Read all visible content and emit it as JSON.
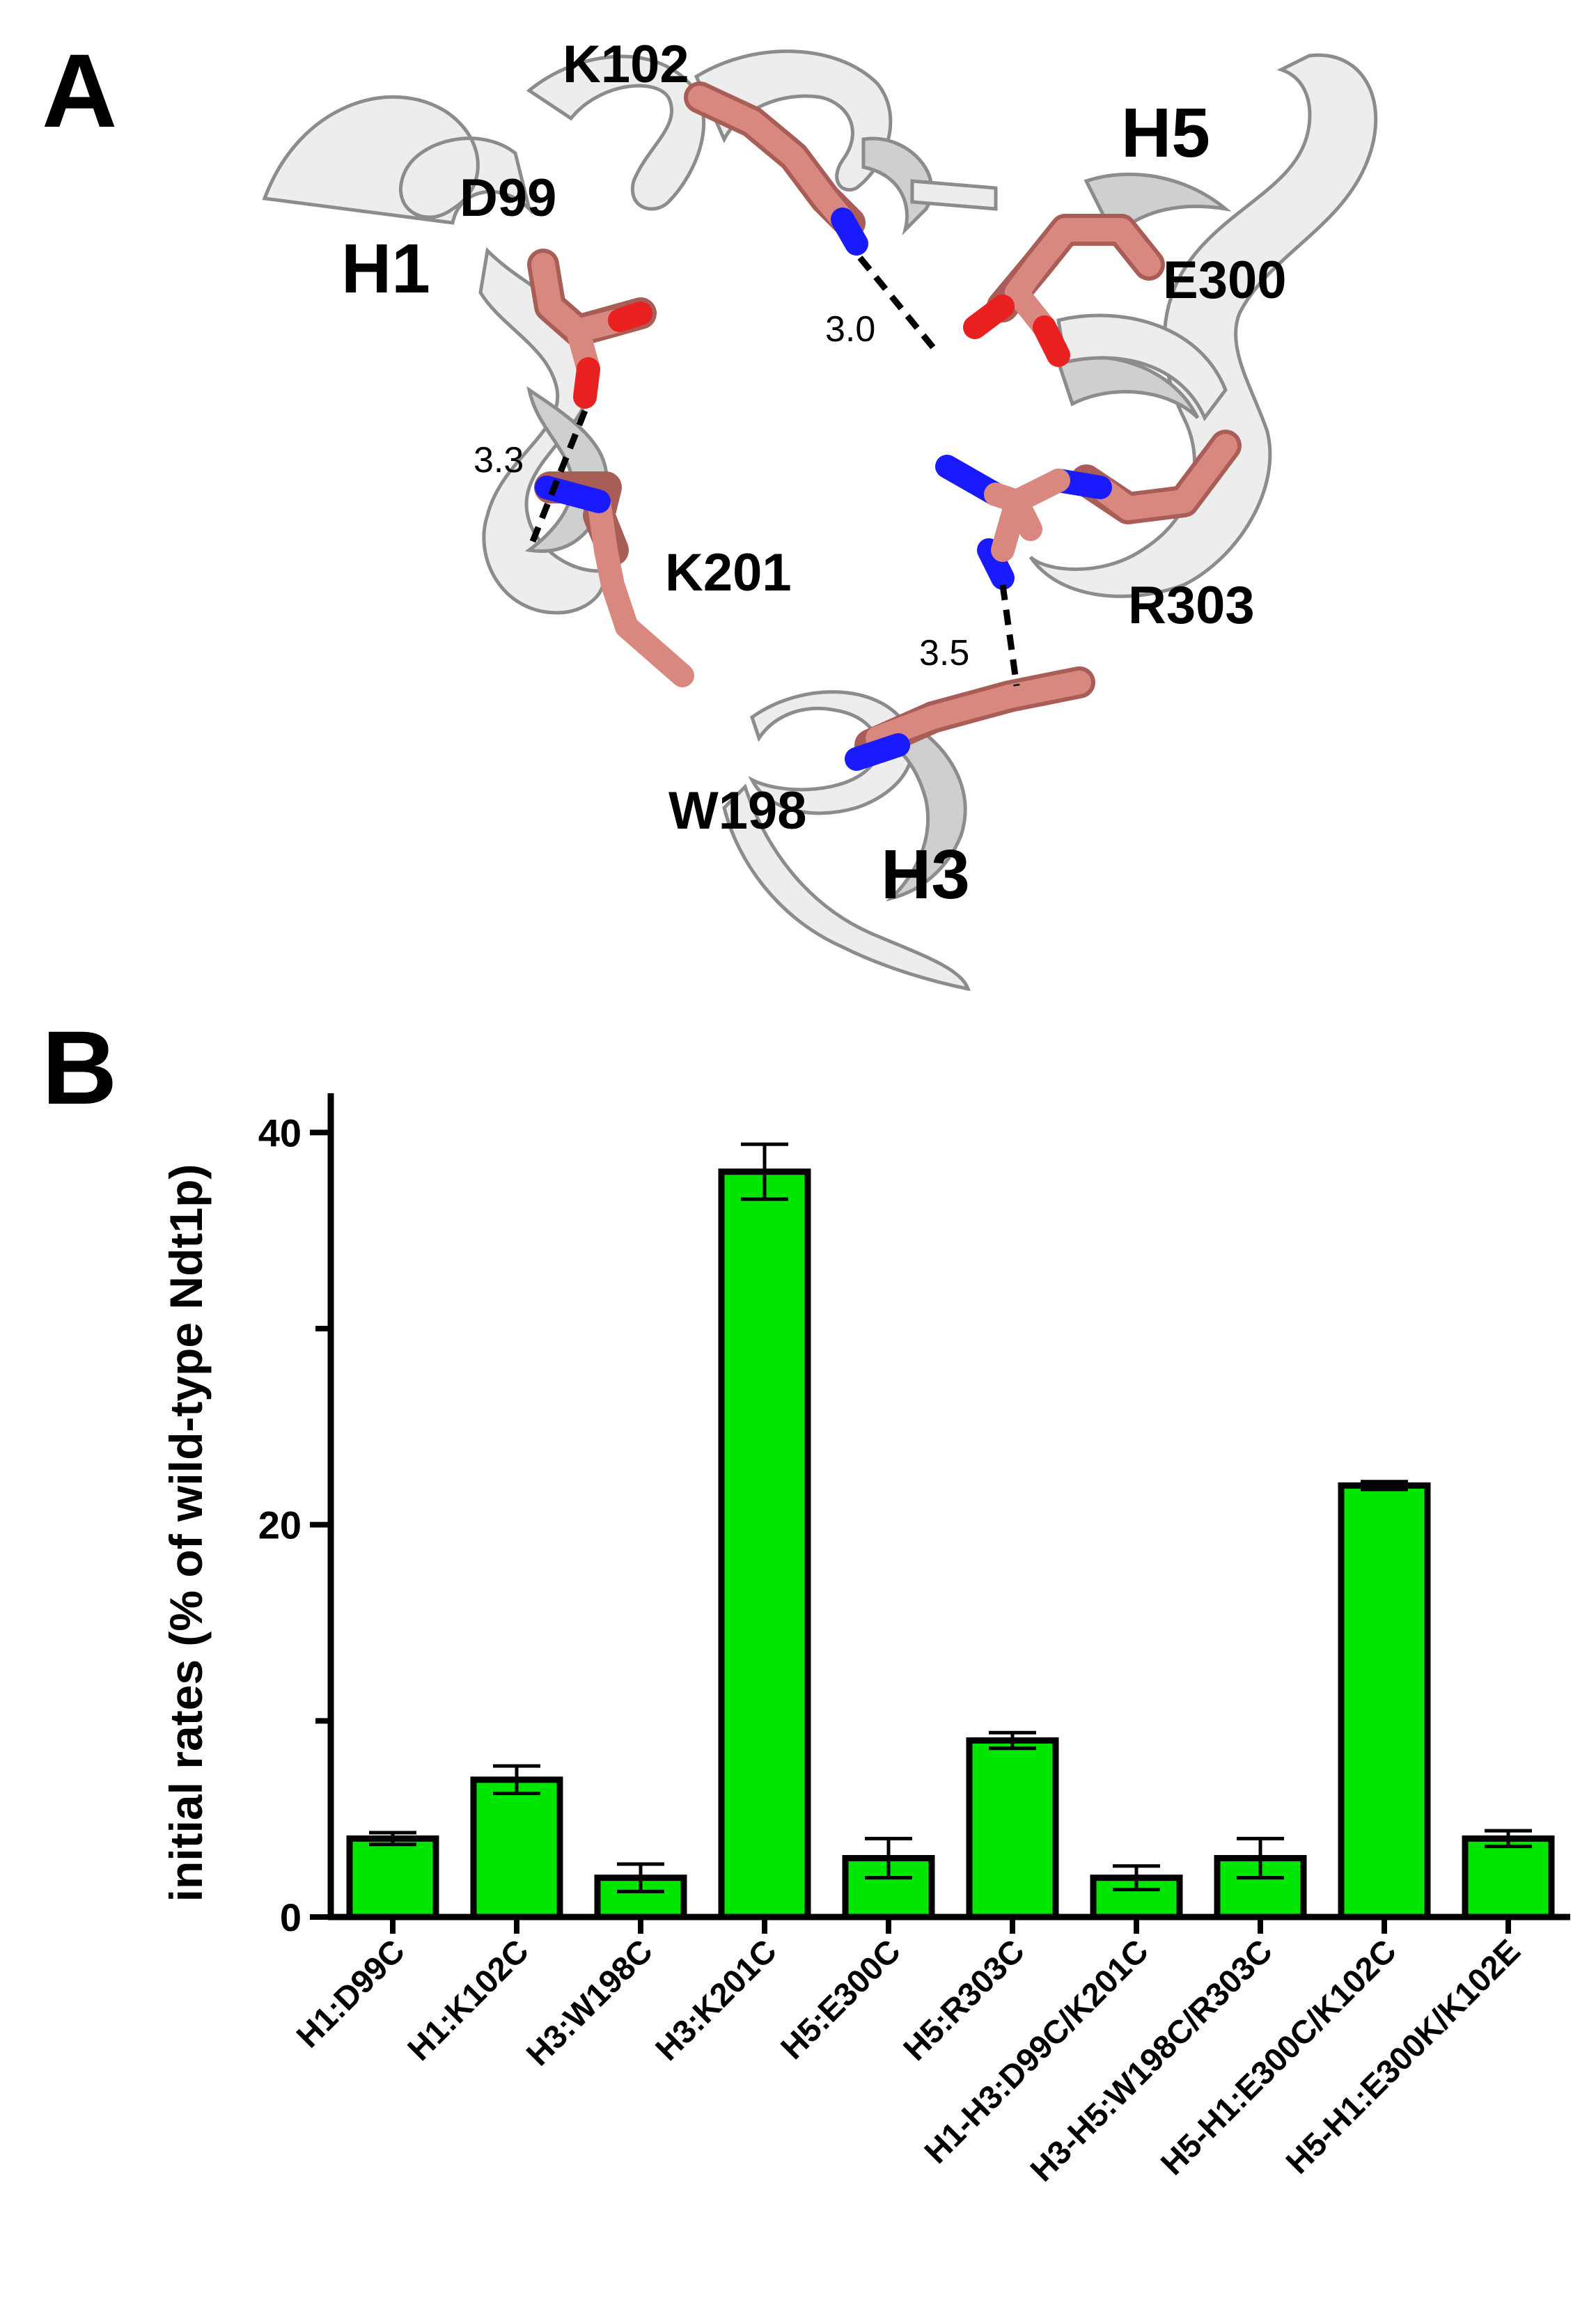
{
  "panelA": {
    "letter": "A",
    "helices": {
      "h1": "H1",
      "h3": "H3",
      "h5": "H5"
    },
    "residues": {
      "k102": "K102",
      "d99": "D99",
      "e300": "E300",
      "k201": "K201",
      "r303": "R303",
      "w198": "W198"
    },
    "distances": {
      "d1": "3.0",
      "d2": "3.3",
      "d3": "3.5"
    }
  },
  "panelB": {
    "letter": "B"
  },
  "colors": {
    "bar": "#00e600",
    "carbon": "#d98880",
    "nitrogen": "#1a1aff",
    "oxygen": "#e82020",
    "ribbon": "#ededed"
  },
  "chart_data": {
    "type": "bar",
    "categories": [
      "H1:D99C",
      "H1:K102C",
      "H3:W198C",
      "H3:K201C",
      "H5:E300C",
      "H5:R303C",
      "H1-H3:D99C/K201C",
      "H3-H5:W198C/R303C",
      "H5-H1:E300C/K102C",
      "H5-H1:E300K/K102E"
    ],
    "values": [
      4.0,
      7.0,
      2.0,
      38.0,
      3.0,
      9.0,
      2.0,
      3.0,
      22.0,
      4.0
    ],
    "errors": [
      0.3,
      0.7,
      0.7,
      1.4,
      1.0,
      0.4,
      0.6,
      1.0,
      0.2,
      0.4
    ],
    "ylabel": "initial rates (% of wild-type Ndt1p)",
    "yticks": [
      "0",
      "20",
      "40"
    ],
    "ylim": [
      0,
      42
    ],
    "grid": false,
    "legend": "none"
  }
}
